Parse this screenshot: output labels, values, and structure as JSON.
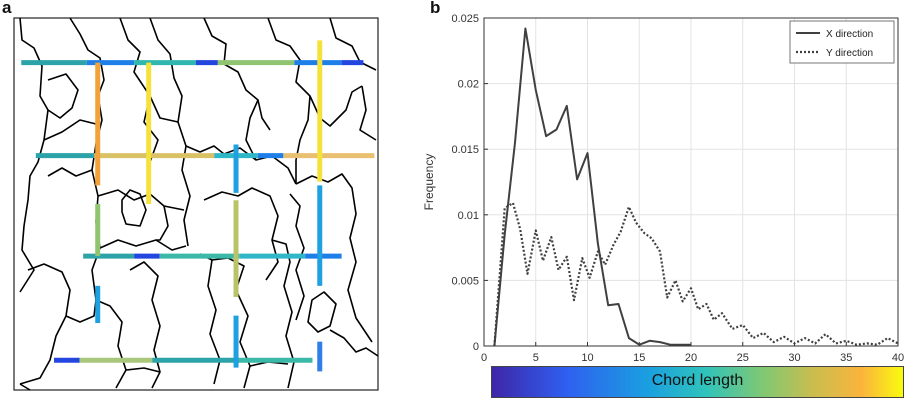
{
  "panels": {
    "a": "a",
    "b": "b"
  },
  "colorbar": {
    "label": "Chord length"
  },
  "chart_data": {
    "type": "line",
    "title": "",
    "xlabel": "",
    "ylabel": "Frequency",
    "xlim": [
      0,
      40
    ],
    "ylim": [
      0,
      0.025
    ],
    "xticks": [
      0,
      5,
      10,
      15,
      20,
      25,
      30,
      35,
      40
    ],
    "xtick_labels": [
      "0",
      "5",
      "10",
      "15",
      "20",
      "25",
      "30",
      "35",
      "40"
    ],
    "yticks": [
      0,
      0.005,
      0.01,
      0.015,
      0.02,
      0.025
    ],
    "ytick_labels": [
      "0",
      "0.005",
      "0.01",
      "0.015",
      "0.02",
      "0.025"
    ],
    "grid": true,
    "legend_position": "top-right",
    "series": [
      {
        "name": "X direction",
        "style": "solid",
        "color": "#404040",
        "x": [
          1,
          2,
          3,
          4,
          5,
          6,
          7,
          8,
          9,
          10,
          11,
          12,
          13,
          14,
          15,
          16,
          17,
          18,
          19,
          20
        ],
        "y": [
          0,
          0.0085,
          0.0155,
          0.0242,
          0.0195,
          0.016,
          0.0165,
          0.0183,
          0.0127,
          0.0147,
          0.0078,
          0.0031,
          0.0032,
          0.0006,
          0.0001,
          0.0004,
          0.0003,
          0.0001,
          0.0001,
          0.0001
        ]
      },
      {
        "name": "Y direction",
        "style": "dotted",
        "color": "#404040",
        "x": [
          1,
          2,
          2.8,
          3.5,
          4.2,
          5,
          5.7,
          6.5,
          7.2,
          8,
          8.7,
          9.5,
          10.2,
          11,
          11.7,
          12.5,
          13.2,
          14,
          14.7,
          15.5,
          16.2,
          17,
          17.7,
          18.5,
          19.2,
          20,
          20.7,
          21.5,
          22.2,
          23,
          24,
          25,
          26,
          27,
          28,
          29,
          30,
          31,
          32,
          33,
          34,
          35,
          36,
          37,
          38,
          39,
          40
        ],
        "y": [
          0,
          0.0105,
          0.0109,
          0.0089,
          0.0055,
          0.0088,
          0.0065,
          0.0083,
          0.0058,
          0.0068,
          0.0035,
          0.0067,
          0.0052,
          0.0072,
          0.0062,
          0.0077,
          0.0087,
          0.0106,
          0.0094,
          0.0086,
          0.0082,
          0.0072,
          0.0037,
          0.005,
          0.0034,
          0.0044,
          0.0028,
          0.0032,
          0.002,
          0.0025,
          0.0013,
          0.0016,
          0.0006,
          0.001,
          0.0003,
          0.0007,
          0.0002,
          0.0006,
          0.0002,
          0.0009,
          0.0002,
          0.0004,
          0.0001,
          0.0002,
          0.0001,
          0.0006,
          0.0002
        ]
      }
    ]
  },
  "micrograph": {
    "chords": [
      {
        "o": "h",
        "fixed": 0.12,
        "from": 0.02,
        "to": 0.2,
        "color": "#2ba3a8"
      },
      {
        "o": "h",
        "fixed": 0.12,
        "from": 0.2,
        "to": 0.33,
        "color": "#1f7fe8"
      },
      {
        "o": "h",
        "fixed": 0.12,
        "from": 0.33,
        "to": 0.5,
        "color": "#2fb7b0"
      },
      {
        "o": "h",
        "fixed": 0.12,
        "from": 0.5,
        "to": 0.56,
        "color": "#2346e0"
      },
      {
        "o": "h",
        "fixed": 0.12,
        "from": 0.56,
        "to": 0.77,
        "color": "#8fc471"
      },
      {
        "o": "h",
        "fixed": 0.12,
        "from": 0.77,
        "to": 0.9,
        "color": "#1f7fe8"
      },
      {
        "o": "h",
        "fixed": 0.12,
        "from": 0.9,
        "to": 0.96,
        "color": "#2346e0"
      },
      {
        "o": "h",
        "fixed": 0.37,
        "from": 0.06,
        "to": 0.22,
        "color": "#2ba3a8"
      },
      {
        "o": "h",
        "fixed": 0.37,
        "from": 0.22,
        "to": 0.55,
        "color": "#d9c265"
      },
      {
        "o": "h",
        "fixed": 0.37,
        "from": 0.55,
        "to": 0.67,
        "color": "#2fb7c8"
      },
      {
        "o": "h",
        "fixed": 0.37,
        "from": 0.67,
        "to": 0.74,
        "color": "#1f7fe8"
      },
      {
        "o": "h",
        "fixed": 0.37,
        "from": 0.74,
        "to": 0.99,
        "color": "#e9c070"
      },
      {
        "o": "h",
        "fixed": 0.64,
        "from": 0.19,
        "to": 0.33,
        "color": "#2ba3a8"
      },
      {
        "o": "h",
        "fixed": 0.64,
        "from": 0.33,
        "to": 0.4,
        "color": "#2346e0"
      },
      {
        "o": "h",
        "fixed": 0.64,
        "from": 0.4,
        "to": 0.62,
        "color": "#3ab8a8"
      },
      {
        "o": "h",
        "fixed": 0.64,
        "from": 0.62,
        "to": 0.8,
        "color": "#2fb7c8"
      },
      {
        "o": "h",
        "fixed": 0.64,
        "from": 0.8,
        "to": 0.9,
        "color": "#1f7fe8"
      },
      {
        "o": "h",
        "fixed": 0.92,
        "from": 0.11,
        "to": 0.18,
        "color": "#2346e0"
      },
      {
        "o": "h",
        "fixed": 0.92,
        "from": 0.18,
        "to": 0.38,
        "color": "#a9c77a"
      },
      {
        "o": "h",
        "fixed": 0.92,
        "from": 0.38,
        "to": 0.62,
        "color": "#2ba3a8"
      },
      {
        "o": "h",
        "fixed": 0.92,
        "from": 0.62,
        "to": 0.82,
        "color": "#3ab8a8"
      },
      {
        "o": "v",
        "fixed": 0.23,
        "from": 0.12,
        "to": 0.45,
        "color": "#f2a23c"
      },
      {
        "o": "v",
        "fixed": 0.23,
        "from": 0.5,
        "to": 0.64,
        "color": "#8fc471"
      },
      {
        "o": "v",
        "fixed": 0.23,
        "from": 0.72,
        "to": 0.82,
        "color": "#1fa0e0"
      },
      {
        "o": "v",
        "fixed": 0.37,
        "from": 0.12,
        "to": 0.5,
        "color": "#f4e23a"
      },
      {
        "o": "v",
        "fixed": 0.61,
        "from": 0.34,
        "to": 0.47,
        "color": "#1fa0e0"
      },
      {
        "o": "v",
        "fixed": 0.61,
        "from": 0.49,
        "to": 0.75,
        "color": "#b9c468"
      },
      {
        "o": "v",
        "fixed": 0.61,
        "from": 0.8,
        "to": 0.94,
        "color": "#1fa0e0"
      },
      {
        "o": "v",
        "fixed": 0.84,
        "from": 0.06,
        "to": 0.44,
        "color": "#f4e23a"
      },
      {
        "o": "v",
        "fixed": 0.84,
        "from": 0.45,
        "to": 0.72,
        "color": "#1fa0e0"
      },
      {
        "o": "v",
        "fixed": 0.84,
        "from": 0.87,
        "to": 0.95,
        "color": "#2f7fe8"
      }
    ]
  }
}
